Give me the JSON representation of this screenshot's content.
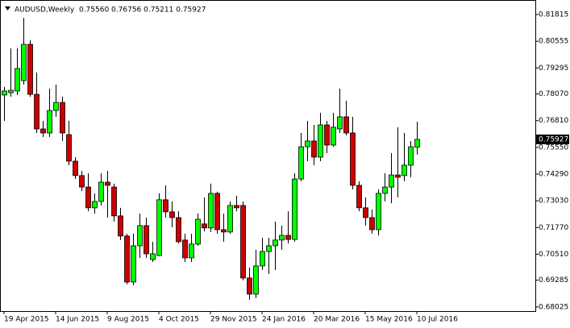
{
  "chart_data": {
    "type": "candlestick",
    "header": "AUDUSD,Weekly  0.75560 0.76756 0.75211 0.75927",
    "categories": [
      "19 Apr 2015",
      null,
      null,
      null,
      null,
      null,
      null,
      null,
      "14 Jun 2015",
      null,
      null,
      null,
      null,
      null,
      null,
      null,
      "9 Aug 2015",
      null,
      null,
      null,
      null,
      null,
      null,
      null,
      "4 Oct 2015",
      null,
      null,
      null,
      null,
      null,
      null,
      null,
      "29 Nov 2015",
      null,
      null,
      null,
      null,
      null,
      null,
      null,
      "24 Jan 2016",
      null,
      null,
      null,
      null,
      null,
      null,
      null,
      "20 Mar 2016",
      null,
      null,
      null,
      null,
      null,
      null,
      null,
      "15 May 2016",
      null,
      null,
      null,
      null,
      null,
      null,
      null,
      "10 Jul 2016"
    ],
    "open": [
      0.7802,
      0.7813,
      0.7821,
      0.787,
      0.8041,
      0.7805,
      0.7642,
      0.7623,
      0.7729,
      0.7767,
      0.7615,
      0.749,
      0.7422,
      0.7368,
      0.727,
      0.73,
      0.7391,
      0.7368,
      0.7232,
      0.7137,
      0.692,
      0.7091,
      0.7186,
      0.7026,
      0.7045,
      0.7308,
      0.7251,
      0.7224,
      0.7118,
      0.7034,
      0.7099,
      0.7194,
      0.7175,
      0.7338,
      0.7167,
      0.7156,
      0.7281,
      0.7281,
      0.6939,
      0.6863,
      0.6996,
      0.7064,
      0.7091,
      0.7118,
      0.714,
      0.7121,
      0.7406,
      0.7558,
      0.7585,
      0.7509,
      0.7661,
      0.7566,
      0.7642,
      0.7699,
      0.7623,
      0.7376,
      0.727,
      0.7224,
      0.7167,
      0.7338,
      0.7368,
      0.7425,
      0.7422,
      0.7471,
      0.7556
    ],
    "high": [
      0.784,
      0.8022,
      0.8022,
      0.8166,
      0.806,
      0.7908,
      0.768,
      0.7832,
      0.7851,
      0.7794,
      0.768,
      0.7509,
      0.7444,
      0.7433,
      0.7338,
      0.7433,
      0.7444,
      0.7384,
      0.727,
      0.7148,
      0.7148,
      0.7243,
      0.7224,
      0.711,
      0.7338,
      0.7376,
      0.73,
      0.7254,
      0.7148,
      0.7148,
      0.7243,
      0.7319,
      0.7384,
      0.7346,
      0.7243,
      0.73,
      0.7327,
      0.73,
      0.6988,
      0.7072,
      0.7129,
      0.7129,
      0.7205,
      0.7186,
      0.7254,
      0.7433,
      0.7623,
      0.768,
      0.7661,
      0.7718,
      0.768,
      0.7718,
      0.7832,
      0.7775,
      0.7699,
      0.7395,
      0.7319,
      0.7262,
      0.7357,
      0.7433,
      0.7528,
      0.765,
      0.7623,
      0.7585,
      0.76756
    ],
    "low": [
      0.768,
      0.7794,
      0.7802,
      0.7851,
      0.7794,
      0.7623,
      0.7604,
      0.7604,
      0.7699,
      0.7585,
      0.7471,
      0.7406,
      0.7349,
      0.7254,
      0.7243,
      0.7281,
      0.7224,
      0.7205,
      0.7118,
      0.6909,
      0.6905,
      0.7034,
      0.7034,
      0.7015,
      0.7042,
      0.7224,
      0.7178,
      0.7102,
      0.7015,
      0.7015,
      0.7091,
      0.7159,
      0.7156,
      0.7148,
      0.711,
      0.7148,
      0.7254,
      0.6928,
      0.6836,
      0.6844,
      0.6977,
      0.6958,
      0.6977,
      0.7072,
      0.7102,
      0.711,
      0.7395,
      0.749,
      0.7471,
      0.749,
      0.7528,
      0.7558,
      0.7623,
      0.7612,
      0.7357,
      0.7254,
      0.7186,
      0.7148,
      0.714,
      0.73,
      0.7292,
      0.7319,
      0.7395,
      0.7414,
      0.75211
    ],
    "close": [
      0.7821,
      0.7824,
      0.7927,
      0.8041,
      0.7805,
      0.7642,
      0.7623,
      0.7729,
      0.7767,
      0.7623,
      0.749,
      0.7422,
      0.7368,
      0.727,
      0.73,
      0.7391,
      0.7376,
      0.7232,
      0.7137,
      0.692,
      0.7091,
      0.7186,
      0.7053,
      0.7053,
      0.7308,
      0.7251,
      0.7224,
      0.711,
      0.7034,
      0.7099,
      0.7216,
      0.7175,
      0.7338,
      0.7167,
      0.7156,
      0.7281,
      0.727,
      0.6939,
      0.6863,
      0.6996,
      0.7064,
      0.7091,
      0.7118,
      0.714,
      0.7121,
      0.7406,
      0.7558,
      0.7585,
      0.7509,
      0.7661,
      0.7566,
      0.765,
      0.7699,
      0.7623,
      0.7376,
      0.727,
      0.7224,
      0.7167,
      0.7338,
      0.7368,
      0.7425,
      0.7414,
      0.7471,
      0.7558,
      0.75927
    ],
    "up_color": "#00ff00",
    "down_color": "#cc0000",
    "ylim": [
      0.6783,
      0.825
    ],
    "yticks": [
      0.81815,
      0.80555,
      0.79295,
      {
        "value": 0.7807,
        "label": "0.78070"
      },
      {
        "value": 0.7681,
        "label": "0.76810"
      },
      {
        "value": 0.7555,
        "label": "0.75550"
      },
      {
        "value": 0.7429,
        "label": "0.74290"
      },
      {
        "value": 0.7303,
        "label": "0.73030"
      },
      {
        "value": 0.7177,
        "label": "0.71770"
      },
      {
        "value": 0.7051,
        "label": "0.70510"
      },
      0.69285,
      0.68025
    ],
    "current_price": {
      "value": 0.75927,
      "label": "0.75927"
    },
    "grid": false
  }
}
